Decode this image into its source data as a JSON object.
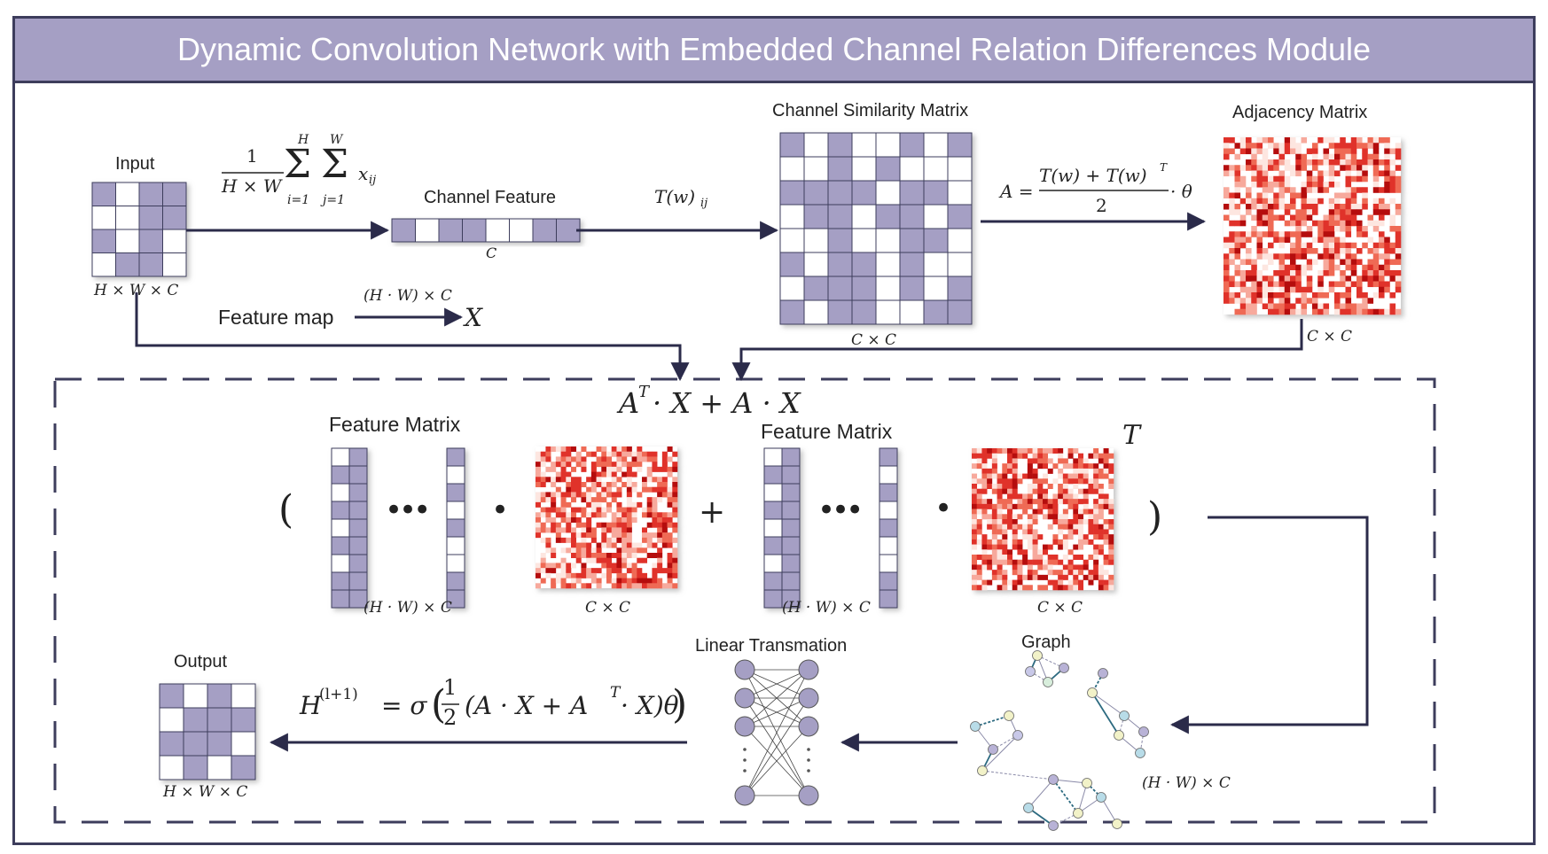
{
  "title": "Dynamic Convolution Network with Embedded Channel Relation Differences Module",
  "labels": {
    "input": "Input",
    "channel_feature": "Channel Feature",
    "channel_similarity": "Channel Similarity Matrix",
    "adjacency": "Adjacency Matrix",
    "feature_map": "Feature map",
    "feature_matrix_1": "Feature Matrix",
    "feature_matrix_2": "Feature Matrix",
    "output": "Output",
    "linear_transmation": "Linear Transmation",
    "graph": "Graph"
  },
  "math": {
    "pool_frac_num": "1",
    "pool_frac_den": "H × W",
    "pool_sum_i": "Σ",
    "pool_sum_j": "Σ",
    "pool_sum_i_top": "H",
    "pool_sum_i_bot": "i=1",
    "pool_sum_j_top": "W",
    "pool_sum_j_bot": "j=1",
    "pool_x": "x",
    "pool_x_sub": "ij",
    "t_w": "T(w)",
    "t_w_sub": "ij",
    "adj_lhs": "A =",
    "adj_num": "T(w) + T(w)",
    "adj_num_sup": "T",
    "adj_den": "2",
    "adj_tail": "· θ",
    "input_dims": "H × W × C",
    "c_label": "C",
    "cxc_sim": "C × C",
    "cxc_adj": "C × C",
    "hw_c_top": "(H · W) × C",
    "x_var": "X",
    "main_expr": "A",
    "main_expr_sup": "T",
    "main_expr_rest": " · X + A · X",
    "paren_open": "(",
    "paren_close": ")",
    "dots1": "•••",
    "dots2": "•••",
    "dot_op1": "•",
    "dot_op2": "•",
    "plus": "+",
    "t_sup": "T",
    "hw_c_1": "(H · W) × C",
    "cxc_1": "C × C",
    "hw_c_2": "(H · W) × C",
    "cxc_2": "C × C",
    "hw_c_graph": "(H · W) × C",
    "output_dims": "H × W × C",
    "final_h": "H",
    "final_h_sup": "(l+1)",
    "final_eq": "= σ",
    "final_frac_num": "1",
    "final_frac_den": "2",
    "final_body": "(A · X + A",
    "final_body_sup": "T",
    "final_body_end": " · X)θ"
  },
  "colors": {
    "purple": "#a59fc4",
    "frame": "#3d3d5c",
    "arrow": "#2b2b4a",
    "red_dark": "#b50d0d",
    "red_mid": "#e0322b",
    "red_light": "#f7a99c"
  },
  "grids": {
    "input": [
      [
        1,
        0,
        1,
        1
      ],
      [
        0,
        0,
        1,
        1
      ],
      [
        1,
        0,
        1,
        0
      ],
      [
        0,
        1,
        1,
        0
      ]
    ],
    "channel_feature": [
      1,
      0,
      1,
      1,
      0,
      0,
      1,
      1
    ],
    "similarity": [
      [
        1,
        0,
        1,
        0,
        0,
        1,
        0,
        1
      ],
      [
        0,
        0,
        1,
        0,
        1,
        0,
        0,
        0
      ],
      [
        1,
        1,
        1,
        1,
        0,
        1,
        1,
        0
      ],
      [
        0,
        1,
        1,
        0,
        1,
        1,
        0,
        1
      ],
      [
        0,
        0,
        1,
        0,
        0,
        1,
        1,
        0
      ],
      [
        1,
        0,
        1,
        1,
        0,
        1,
        0,
        0
      ],
      [
        0,
        1,
        1,
        1,
        0,
        1,
        0,
        1
      ],
      [
        1,
        0,
        1,
        1,
        0,
        0,
        1,
        1
      ]
    ],
    "output": [
      [
        1,
        0,
        1,
        0
      ],
      [
        0,
        1,
        1,
        1
      ],
      [
        1,
        1,
        1,
        0
      ],
      [
        0,
        1,
        0,
        1
      ]
    ],
    "fm_col_a": [
      0,
      1,
      0,
      1,
      0,
      1,
      0,
      1,
      1
    ],
    "fm_col_b": [
      1,
      1,
      1,
      1,
      1,
      1,
      1,
      1,
      1
    ],
    "fm_col_c": [
      1,
      0,
      1,
      0,
      1,
      0,
      0,
      1,
      1
    ]
  }
}
